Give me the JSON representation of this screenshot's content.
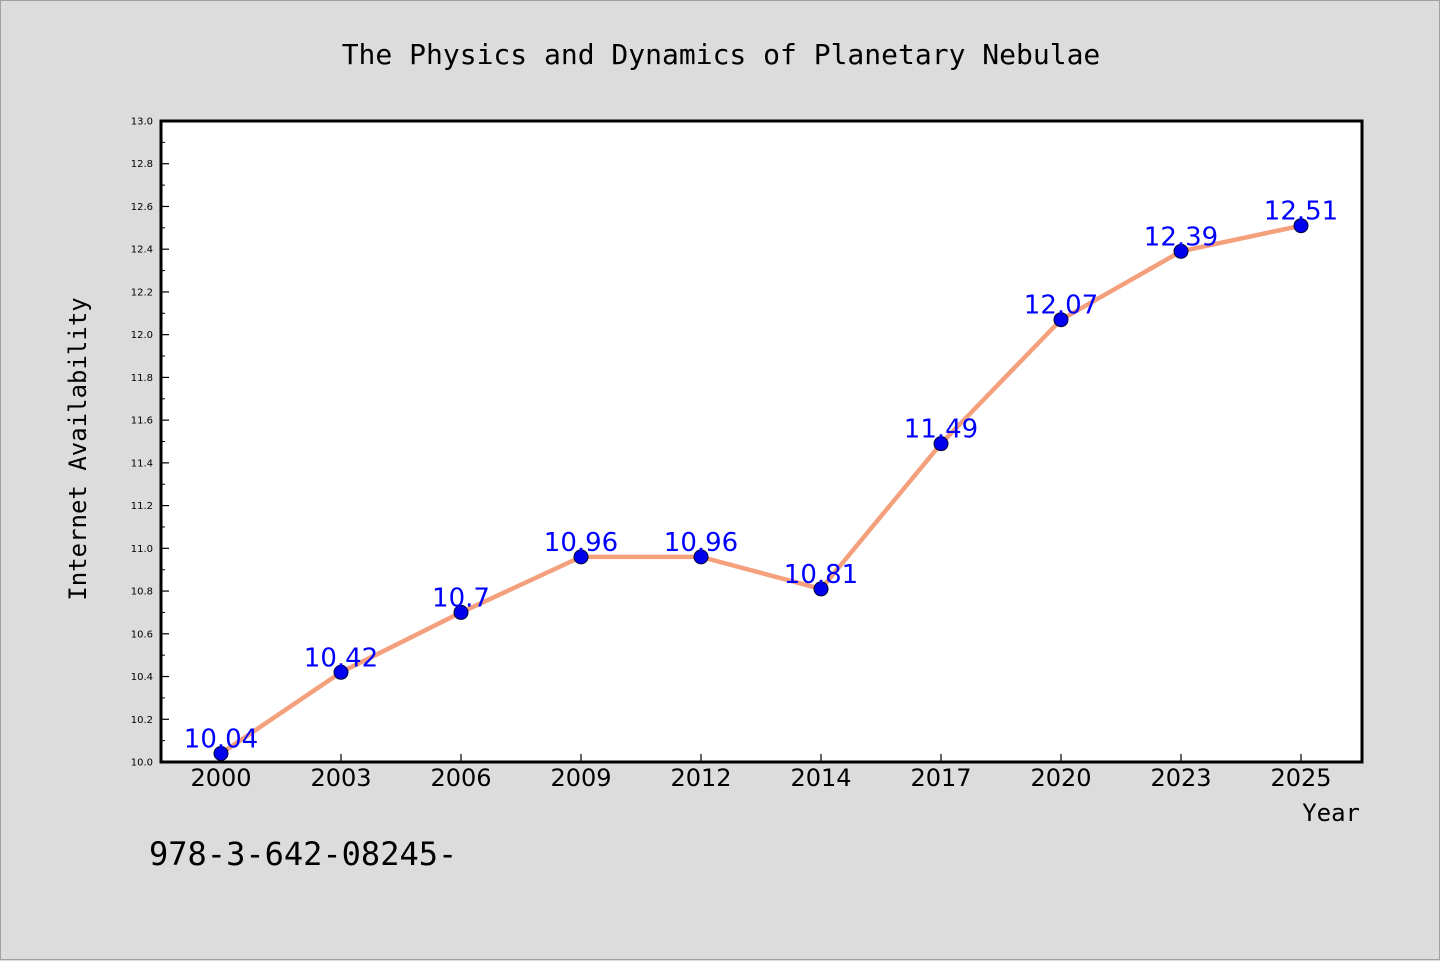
{
  "chart_data": {
    "type": "line",
    "title": "The Physics and Dynamics of Planetary Nebulae",
    "xlabel": "Year",
    "ylabel": "Internet Availability",
    "categories": [
      "2000",
      "2003",
      "2006",
      "2009",
      "2012",
      "2014",
      "2017",
      "2020",
      "2023",
      "2025"
    ],
    "series": [
      {
        "values": [
          10.04,
          10.42,
          10.7,
          10.96,
          10.96,
          10.81,
          11.49,
          12.07,
          12.39,
          12.51
        ],
        "data_labels": [
          "10.04",
          "10.42",
          "10.7",
          "10.96",
          "10.96",
          "10.81",
          "11.49",
          "12.07",
          "12.39",
          "12.51"
        ],
        "line_color": "#f4a07c",
        "marker_color": "#0000ee"
      }
    ],
    "ylim": [
      10.0,
      13.0
    ],
    "yticks": [
      "10.0",
      "10.2",
      "10.4",
      "10.6",
      "10.8",
      "11.0",
      "11.2",
      "11.4",
      "11.6",
      "11.8",
      "12.0",
      "12.2",
      "12.4",
      "12.6",
      "12.8",
      "13.0"
    ],
    "grid": false,
    "legend": "none"
  },
  "footer_text": "978-3-642-08245-"
}
